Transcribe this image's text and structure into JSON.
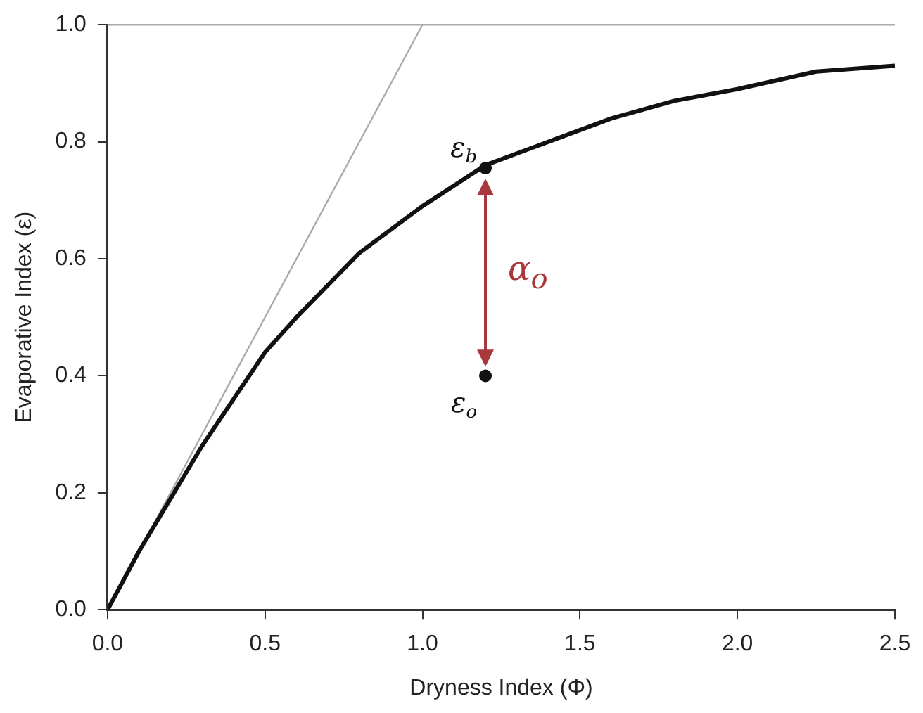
{
  "chart_data": {
    "type": "line",
    "xlabel": "Dryness Index (Φ)",
    "ylabel": "Evaporative Index (ε)",
    "xlim": [
      0,
      2.5
    ],
    "xticks": [
      {
        "value": 0,
        "label": "0.0"
      },
      {
        "value": 0.5,
        "label": "0.5"
      },
      {
        "value": 1,
        "label": "1.0"
      },
      {
        "value": 1.5,
        "label": "1.5"
      },
      {
        "value": 2,
        "label": "2.0"
      },
      {
        "value": 2.5,
        "label": "2.5"
      }
    ],
    "ylim": [
      0,
      1
    ],
    "yticks": [
      {
        "value": 0,
        "label": "0.0"
      },
      {
        "value": 0.2,
        "label": "0.2"
      },
      {
        "value": 0.4,
        "label": "0.4"
      },
      {
        "value": 0.6,
        "label": "0.6"
      },
      {
        "value": 0.8,
        "label": "0.8"
      },
      {
        "value": 1,
        "label": "1.0"
      }
    ],
    "grid": false,
    "legend": false,
    "series": [
      {
        "color": "#111111",
        "marker": "none",
        "x": [
          0,
          0.1,
          0.2,
          0.3,
          0.4,
          0.5,
          0.6,
          0.8,
          1.0,
          1.2,
          1.4,
          1.6,
          1.8,
          2.0,
          2.25,
          2.5
        ],
        "values": [
          0,
          0.1,
          0.19,
          0.28,
          0.36,
          0.44,
          0.5,
          0.61,
          0.69,
          0.76,
          0.8,
          0.84,
          0.87,
          0.89,
          0.92,
          0.93
        ]
      },
      {
        "type": "line",
        "color": "#aaaaaa",
        "marker": "none",
        "x": [
          0,
          1
        ],
        "values": [
          0,
          1
        ]
      },
      {
        "type": "scatter",
        "color": "#111111",
        "marker": "circle",
        "x": [
          1.2,
          1.2
        ],
        "values": [
          0.755,
          0.4
        ]
      }
    ],
    "ref_lines": [
      {
        "axis": "y",
        "value": 1,
        "color": "#aaaaaa"
      }
    ],
    "annotations": [
      {
        "text": "ε$_{b}$",
        "x": 1.2,
        "y": 0.755
      },
      {
        "text": "ε$_{o}$",
        "x": 1.2,
        "y": 0.4
      },
      "α$_{o}$"
    ]
  }
}
